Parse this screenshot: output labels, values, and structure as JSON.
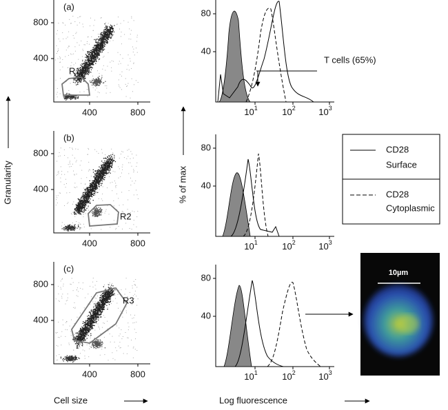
{
  "panels": [
    {
      "label": "(a)",
      "gate": "R1",
      "scatter_yticks": [
        "800",
        "400"
      ],
      "scatter_xticks": [
        "400",
        "800"
      ],
      "hist_yticks": [
        "80",
        "40"
      ],
      "hist_xticks": [
        {
          "base": "10",
          "exp": "1"
        },
        {
          "base": "10",
          "exp": "2"
        },
        {
          "base": "10",
          "exp": "3"
        }
      ]
    },
    {
      "label": "(b)",
      "gate": "R2",
      "scatter_yticks": [
        "800",
        "400"
      ],
      "scatter_xticks": [
        "400",
        "800"
      ],
      "hist_yticks": [
        "80",
        "40"
      ],
      "hist_xticks": [
        {
          "base": "10",
          "exp": "1"
        },
        {
          "base": "10",
          "exp": "2"
        },
        {
          "base": "10",
          "exp": "3"
        }
      ]
    },
    {
      "label": "(c)",
      "gate": "R3",
      "scatter_yticks": [
        "800",
        "400"
      ],
      "scatter_xticks": [
        "400",
        "800"
      ],
      "hist_yticks": [
        "80",
        "40"
      ],
      "hist_xticks": [
        {
          "base": "10",
          "exp": "1"
        },
        {
          "base": "10",
          "exp": "2"
        },
        {
          "base": "10",
          "exp": "3"
        }
      ]
    }
  ],
  "annotation": "T cells (65%)",
  "axis_labels": {
    "granularity": "Granularity",
    "cell_size": "Cell size",
    "percent_max": "% of max",
    "log_fluorescence": "Log fluorescence"
  },
  "legend": [
    {
      "line1": "CD28",
      "line2": "Surface"
    },
    {
      "line1": "CD28",
      "line2": "Cytoplasmic"
    }
  ],
  "scale_bar": "10µm"
}
